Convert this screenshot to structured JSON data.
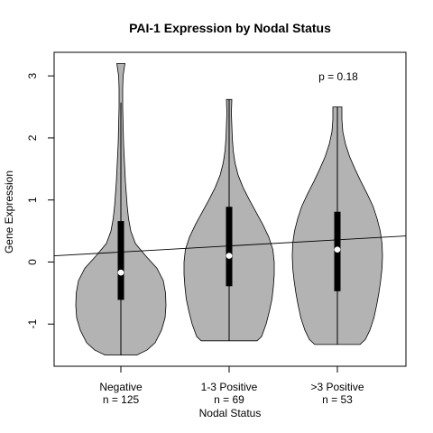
{
  "chart_data": {
    "type": "violin",
    "title": "PAI-1 Expression by Nodal Status",
    "xlabel": "Nodal Status",
    "ylabel": "Gene Expression",
    "ylim": [
      -1.68,
      3.38
    ],
    "yticks": [
      -1,
      0,
      1,
      2,
      3
    ],
    "annotation": "p = 0.18",
    "fill_color": "#b3b3b3",
    "box_color": "#000000",
    "median_color": "#ffffff",
    "categories": [
      {
        "label": "Negative",
        "n_label": "n = 125",
        "min": -1.5,
        "max": 3.2,
        "whisker_low": -1.5,
        "whisker_high": 2.57,
        "q1": -0.61,
        "median": -0.17,
        "q3": 0.66,
        "density": [
          [
            -1.5,
            0.35
          ],
          [
            -1.42,
            0.58
          ],
          [
            -1.3,
            0.76
          ],
          [
            -1.1,
            0.9
          ],
          [
            -0.9,
            0.98
          ],
          [
            -0.7,
            1.0
          ],
          [
            -0.5,
            0.99
          ],
          [
            -0.3,
            0.94
          ],
          [
            -0.1,
            0.8
          ],
          [
            0.1,
            0.55
          ],
          [
            0.3,
            0.32
          ],
          [
            0.5,
            0.22
          ],
          [
            0.7,
            0.17
          ],
          [
            0.9,
            0.14
          ],
          [
            1.1,
            0.12
          ],
          [
            1.3,
            0.1
          ],
          [
            1.6,
            0.08
          ],
          [
            1.9,
            0.06
          ],
          [
            2.2,
            0.05
          ],
          [
            2.5,
            0.04
          ],
          [
            2.8,
            0.04
          ],
          [
            3.0,
            0.05
          ],
          [
            3.2,
            0.09
          ]
        ]
      },
      {
        "label": "1-3 Positive",
        "n_label": "n = 69",
        "min": -1.27,
        "max": 2.62,
        "whisker_low": -1.27,
        "whisker_high": 2.62,
        "q1": -0.39,
        "median": 0.1,
        "q3": 0.89,
        "density": [
          [
            -1.27,
            0.62
          ],
          [
            -1.2,
            0.72
          ],
          [
            -1.0,
            0.82
          ],
          [
            -0.8,
            0.89
          ],
          [
            -0.6,
            0.95
          ],
          [
            -0.4,
            0.98
          ],
          [
            -0.2,
            1.0
          ],
          [
            0.0,
            1.0
          ],
          [
            0.2,
            0.97
          ],
          [
            0.4,
            0.88
          ],
          [
            0.6,
            0.75
          ],
          [
            0.8,
            0.6
          ],
          [
            1.0,
            0.45
          ],
          [
            1.2,
            0.31
          ],
          [
            1.4,
            0.2
          ],
          [
            1.6,
            0.13
          ],
          [
            1.8,
            0.09
          ],
          [
            2.0,
            0.07
          ],
          [
            2.2,
            0.06
          ],
          [
            2.4,
            0.05
          ],
          [
            2.62,
            0.06
          ]
        ]
      },
      {
        "label": ">3 Positive",
        "n_label": "n = 53",
        "min": -1.33,
        "max": 2.5,
        "whisker_low": -1.33,
        "whisker_high": 2.5,
        "q1": -0.47,
        "median": 0.2,
        "q3": 0.81,
        "density": [
          [
            -1.33,
            0.5
          ],
          [
            -1.25,
            0.62
          ],
          [
            -1.1,
            0.72
          ],
          [
            -0.9,
            0.81
          ],
          [
            -0.7,
            0.87
          ],
          [
            -0.5,
            0.92
          ],
          [
            -0.3,
            0.96
          ],
          [
            -0.1,
            0.99
          ],
          [
            0.1,
            1.0
          ],
          [
            0.3,
            0.99
          ],
          [
            0.5,
            0.95
          ],
          [
            0.7,
            0.88
          ],
          [
            0.9,
            0.79
          ],
          [
            1.1,
            0.66
          ],
          [
            1.3,
            0.52
          ],
          [
            1.5,
            0.39
          ],
          [
            1.7,
            0.27
          ],
          [
            1.9,
            0.18
          ],
          [
            2.1,
            0.12
          ],
          [
            2.3,
            0.1
          ],
          [
            2.5,
            0.1
          ]
        ]
      }
    ],
    "trend_line": {
      "at_left_edge": 0.1,
      "at_right_edge": 0.42
    }
  }
}
